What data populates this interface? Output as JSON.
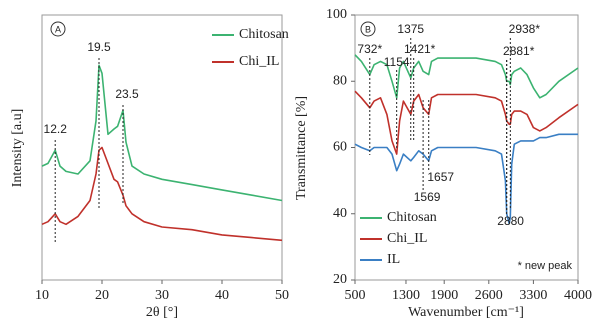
{
  "chart_data": [
    {
      "type": "line",
      "panel": "A",
      "xlabel": "2θ [°]",
      "ylabel": "Intensity [a.u]",
      "xlim": [
        10,
        50
      ],
      "xticks": [
        10,
        20,
        30,
        40,
        50
      ],
      "ylim": [
        0,
        100
      ],
      "legend": "upper right",
      "x": [
        10,
        11,
        12.2,
        13,
        14,
        16,
        18,
        19,
        19.5,
        20,
        21,
        22,
        22.6,
        23.5,
        24,
        25,
        27,
        30,
        35,
        40,
        45,
        50
      ],
      "series": [
        {
          "name": "Chitosan",
          "color": "#3cb371",
          "values": [
            43,
            44,
            49,
            43,
            41,
            40,
            45,
            60,
            81,
            78,
            55,
            57,
            58,
            64,
            52,
            43,
            40,
            38,
            36,
            34,
            32,
            30
          ]
        },
        {
          "name": "Chi_IL",
          "color": "#c0312b",
          "values": [
            21,
            22,
            25,
            22,
            21,
            24,
            30,
            40,
            49,
            50,
            44,
            38,
            37,
            32,
            28,
            25,
            22,
            20,
            19,
            17,
            16,
            15
          ]
        }
      ],
      "peaks": [
        12.2,
        19.5,
        23.5
      ]
    },
    {
      "type": "line",
      "panel": "B",
      "xlabel": "Wavenumber [cm⁻¹]",
      "ylabel": "Transmittance [%]",
      "xlim": [
        500,
        4000
      ],
      "xticks": [
        500,
        1300,
        1900,
        2600,
        3300,
        4000
      ],
      "ylim": [
        20,
        100
      ],
      "yticks": [
        20,
        40,
        60,
        80,
        100
      ],
      "legend": "lower left",
      "note": "* new peak",
      "x": [
        500,
        600,
        732,
        800,
        900,
        1000,
        1080,
        1154,
        1200,
        1260,
        1375,
        1421,
        1500,
        1569,
        1657,
        1700,
        1800,
        2000,
        2400,
        2700,
        2800,
        2860,
        2881,
        2920,
        2938,
        2960,
        3000,
        3100,
        3200,
        3300,
        3400,
        3500,
        3700,
        4000
      ],
      "series": [
        {
          "name": "Chitosan",
          "color": "#3cb371",
          "values": [
            88,
            86,
            82,
            85,
            86,
            85,
            80,
            75,
            84,
            86,
            81,
            84,
            86,
            83,
            82,
            86,
            87,
            87,
            87,
            86,
            85,
            82,
            80,
            80,
            79,
            82,
            83,
            84,
            82,
            78,
            75,
            76,
            80,
            84
          ]
        },
        {
          "name": "Chi_IL",
          "color": "#c0312b",
          "values": [
            77,
            75,
            72,
            74,
            75,
            70,
            62,
            58,
            68,
            74,
            70,
            74,
            76,
            72,
            70,
            75,
            76,
            76,
            76,
            75,
            74,
            70,
            68,
            67,
            67,
            70,
            71,
            71,
            70,
            66,
            65,
            66,
            69,
            73
          ]
        },
        {
          "name": "IL",
          "color": "#3a7fc4",
          "values": [
            61,
            60,
            59,
            60,
            60,
            60,
            58,
            53,
            55,
            58,
            56,
            57,
            59,
            58,
            56,
            59,
            60,
            60,
            60,
            59,
            58,
            50,
            40,
            37,
            39,
            55,
            61,
            62,
            62,
            62,
            63,
            63,
            64,
            64
          ]
        }
      ],
      "peaks": [
        {
          "value": 732,
          "label": "732*"
        },
        1154,
        1375,
        {
          "value": 1421,
          "label": "1421*"
        },
        1657,
        1569,
        {
          "value": 2938,
          "label": "2938*"
        },
        {
          "value": 2881,
          "label": "2881*"
        },
        2880
      ]
    }
  ]
}
